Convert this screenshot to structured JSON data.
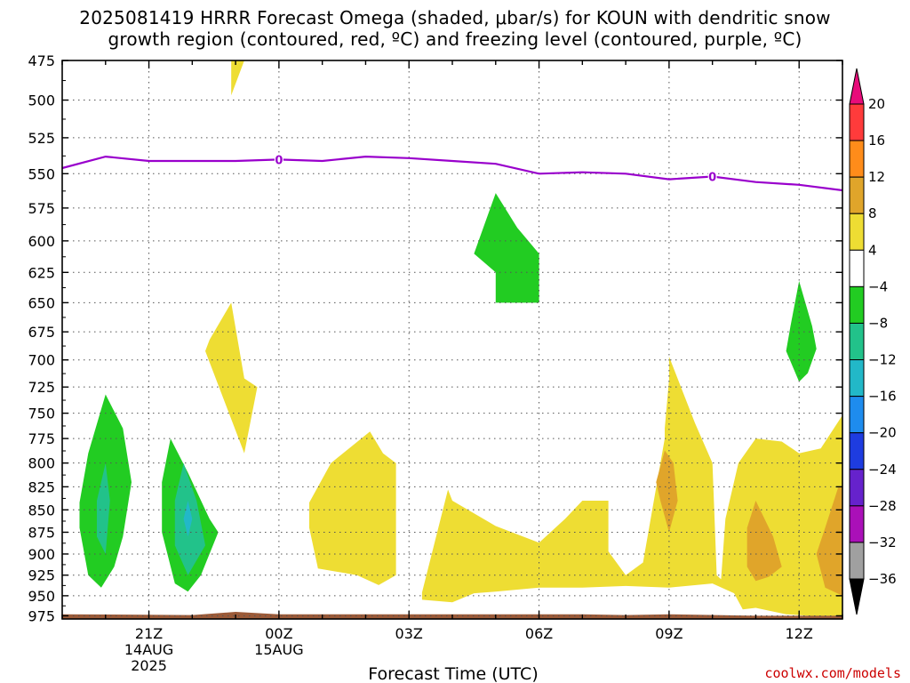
{
  "title": {
    "line1": "2025081419 HRRR Forecast Omega (shaded, μbar/s) for KOUN with dendritic snow",
    "line2": "growth region (contoured, red, ºC) and freezing level (contoured, purple, ºC)"
  },
  "credit": "coolwx.com/models",
  "chart_data": {
    "type": "heatmap",
    "title": "2025081419 HRRR Forecast Omega (shaded, μbar/s) for KOUN with dendritic snow growth region (contoured, red, ºC) and freezing level (contoured, purple, ºC)",
    "xlabel": "Forecast Time (UTC)",
    "ylabel": "",
    "x_start_hour": 19,
    "x_range_hours": [
      0,
      18
    ],
    "x_ticks": [
      {
        "hour": 2,
        "lines": [
          "21Z",
          "14AUG",
          "2025"
        ]
      },
      {
        "hour": 5,
        "lines": [
          "00Z",
          "15AUG"
        ]
      },
      {
        "hour": 8,
        "lines": [
          "03Z"
        ]
      },
      {
        "hour": 11,
        "lines": [
          "06Z"
        ]
      },
      {
        "hour": 14,
        "lines": [
          "09Z"
        ]
      },
      {
        "hour": 17,
        "lines": [
          "12Z"
        ]
      }
    ],
    "y_levels": [
      475,
      500,
      525,
      550,
      575,
      600,
      625,
      650,
      675,
      700,
      725,
      750,
      775,
      800,
      825,
      850,
      875,
      900,
      925,
      950,
      975
    ],
    "y_range_hpa": [
      475,
      979
    ],
    "y_scale": "log-pressure",
    "grid": true,
    "colorbar": {
      "labels": [
        "20",
        "16",
        "12",
        "8",
        "4",
        "−4",
        "−8",
        "−12",
        "−16",
        "−20",
        "−24",
        "−28",
        "−32",
        "−36"
      ],
      "colors": [
        "#e80c7a",
        "#ff3b3b",
        "#ff8c1a",
        "#e0a52a",
        "#eedd33",
        "#ffffff",
        "#22cc22",
        "#22c28a",
        "#22b8c8",
        "#1e8cee",
        "#1e3ce0",
        "#6622cc",
        "#aa10b8",
        "#a0a0a0",
        "#000000"
      ]
    },
    "freezing_level": {
      "color": "#9900cc",
      "label": "0",
      "points": [
        [
          0,
          546
        ],
        [
          1,
          538
        ],
        [
          2,
          541
        ],
        [
          3,
          541
        ],
        [
          4,
          541
        ],
        [
          5,
          540
        ],
        [
          6,
          541
        ],
        [
          7,
          538
        ],
        [
          8,
          539
        ],
        [
          9,
          541
        ],
        [
          10,
          543
        ],
        [
          11,
          550
        ],
        [
          12,
          549
        ],
        [
          13,
          550
        ],
        [
          14,
          554
        ],
        [
          15,
          552
        ],
        [
          16,
          556
        ],
        [
          17,
          558
        ],
        [
          18,
          562
        ]
      ],
      "label_hours": [
        5,
        15
      ]
    },
    "omega_regions": [
      {
        "omega_range": [
          4,
          8
        ],
        "color": "#eedd33",
        "points": [
          [
            3.9,
            475
          ],
          [
            4.2,
            475
          ],
          [
            3.9,
            497
          ]
        ]
      },
      {
        "omega_range": [
          4,
          8
        ],
        "color": "#eedd33",
        "points": [
          [
            3.9,
            650
          ],
          [
            4.2,
            717
          ],
          [
            4.5,
            725
          ],
          [
            4.2,
            790
          ],
          [
            3.3,
            692
          ],
          [
            3.4,
            682
          ]
        ]
      },
      {
        "omega_range": [
          4,
          8
        ],
        "color": "#eedd33",
        "points": [
          [
            7.1,
            768
          ],
          [
            7.4,
            790
          ],
          [
            7.7,
            800
          ],
          [
            7.7,
            925
          ],
          [
            7.3,
            937
          ],
          [
            6.8,
            925
          ],
          [
            5.9,
            917
          ],
          [
            5.7,
            870
          ],
          [
            5.7,
            842
          ],
          [
            6.2,
            800
          ]
        ]
      },
      {
        "omega_range": [
          4,
          8
        ],
        "color": "#eedd33",
        "points": [
          [
            8.3,
            946
          ],
          [
            8.9,
            828
          ],
          [
            9.0,
            840
          ],
          [
            10.0,
            868
          ],
          [
            11.0,
            887
          ],
          [
            11.6,
            860
          ],
          [
            12.0,
            840
          ],
          [
            12.6,
            840
          ],
          [
            12.6,
            897
          ],
          [
            13.0,
            925
          ],
          [
            13.4,
            910
          ],
          [
            13.9,
            775
          ],
          [
            13.9,
            770
          ],
          [
            13.9,
            765
          ],
          [
            14.0,
            718
          ],
          [
            14.0,
            697
          ],
          [
            14.6,
            760
          ],
          [
            15.0,
            800
          ],
          [
            15.1,
            925
          ],
          [
            15.2,
            930
          ],
          [
            15.3,
            860
          ],
          [
            15.6,
            800
          ],
          [
            16.0,
            775
          ],
          [
            16.6,
            778
          ],
          [
            17.0,
            790
          ],
          [
            17.5,
            785
          ],
          [
            18.0,
            752
          ],
          [
            18.0,
            975
          ],
          [
            17.5,
            976
          ],
          [
            16.7,
            973
          ],
          [
            16.0,
            965
          ],
          [
            15.7,
            967
          ],
          [
            15.5,
            947
          ],
          [
            15.0,
            935
          ],
          [
            14.0,
            940
          ],
          [
            13.0,
            938
          ],
          [
            12.0,
            940
          ],
          [
            11.0,
            940
          ],
          [
            10.0,
            945
          ],
          [
            9.5,
            947
          ],
          [
            9.0,
            958
          ],
          [
            8.3,
            955
          ]
        ]
      },
      {
        "omega_range": [
          8,
          12
        ],
        "color": "#e0a52a",
        "points": [
          [
            13.9,
            787
          ],
          [
            14.1,
            800
          ],
          [
            14.2,
            840
          ],
          [
            14.0,
            875
          ],
          [
            13.8,
            840
          ],
          [
            13.7,
            820
          ]
        ]
      },
      {
        "omega_range": [
          8,
          12
        ],
        "color": "#e0a52a",
        "points": [
          [
            16.0,
            840
          ],
          [
            16.4,
            880
          ],
          [
            16.6,
            915
          ],
          [
            16.3,
            927
          ],
          [
            16.0,
            932
          ],
          [
            15.8,
            915
          ],
          [
            15.8,
            870
          ]
        ]
      },
      {
        "omega_range": [
          8,
          12
        ],
        "color": "#e0a52a",
        "points": [
          [
            17.9,
            826
          ],
          [
            18.0,
            826
          ],
          [
            18.0,
            950
          ],
          [
            17.6,
            940
          ],
          [
            17.4,
            900
          ],
          [
            17.6,
            870
          ]
        ]
      },
      {
        "omega_range": [
          -8,
          -4
        ],
        "color": "#22cc22",
        "points": [
          [
            1.0,
            732
          ],
          [
            1.4,
            765
          ],
          [
            1.6,
            820
          ],
          [
            1.4,
            880
          ],
          [
            1.2,
            915
          ],
          [
            0.9,
            940
          ],
          [
            0.6,
            925
          ],
          [
            0.4,
            870
          ],
          [
            0.4,
            842
          ],
          [
            0.6,
            790
          ]
        ]
      },
      {
        "omega_range": [
          -8,
          -4
        ],
        "color": "#22cc22",
        "points": [
          [
            2.5,
            775
          ],
          [
            2.9,
            810
          ],
          [
            3.4,
            860
          ],
          [
            3.6,
            875
          ],
          [
            3.2,
            925
          ],
          [
            2.9,
            945
          ],
          [
            2.6,
            935
          ],
          [
            2.3,
            875
          ],
          [
            2.3,
            820
          ]
        ]
      },
      {
        "omega_range": [
          -12,
          -8
        ],
        "color": "#22c28a",
        "points": [
          [
            1.0,
            800
          ],
          [
            1.1,
            840
          ],
          [
            1.0,
            900
          ],
          [
            0.8,
            880
          ],
          [
            0.8,
            840
          ]
        ]
      },
      {
        "omega_range": [
          -12,
          -8
        ],
        "color": "#22c28a",
        "points": [
          [
            2.8,
            800
          ],
          [
            3.1,
            840
          ],
          [
            3.3,
            890
          ],
          [
            2.9,
            925
          ],
          [
            2.6,
            890
          ],
          [
            2.6,
            840
          ]
        ]
      },
      {
        "omega_range": [
          -16,
          -12
        ],
        "color": "#22b8c8",
        "points": [
          [
            2.9,
            840
          ],
          [
            3.0,
            860
          ],
          [
            2.9,
            880
          ],
          [
            2.8,
            860
          ]
        ]
      },
      {
        "omega_range": [
          -8,
          -4
        ],
        "color": "#22cc22",
        "points": [
          [
            10.0,
            564
          ],
          [
            10.5,
            590
          ],
          [
            11.0,
            610
          ],
          [
            11.0,
            650
          ],
          [
            10.0,
            650
          ],
          [
            10.0,
            625
          ],
          [
            9.5,
            610
          ]
        ]
      },
      {
        "omega_range": [
          -8,
          -4
        ],
        "color": "#22cc22",
        "points": [
          [
            17.0,
            632
          ],
          [
            17.3,
            670
          ],
          [
            17.4,
            690
          ],
          [
            17.2,
            712
          ],
          [
            17.0,
            720
          ],
          [
            16.7,
            692
          ],
          [
            16.8,
            670
          ]
        ]
      }
    ],
    "terrain": {
      "color": "#9b5a38",
      "points": [
        [
          0,
          973
        ],
        [
          3,
          974
        ],
        [
          4,
          970
        ],
        [
          5,
          973
        ],
        [
          12,
          973
        ],
        [
          13,
          974
        ],
        [
          14,
          973
        ],
        [
          16,
          975
        ],
        [
          18,
          975
        ]
      ]
    }
  }
}
